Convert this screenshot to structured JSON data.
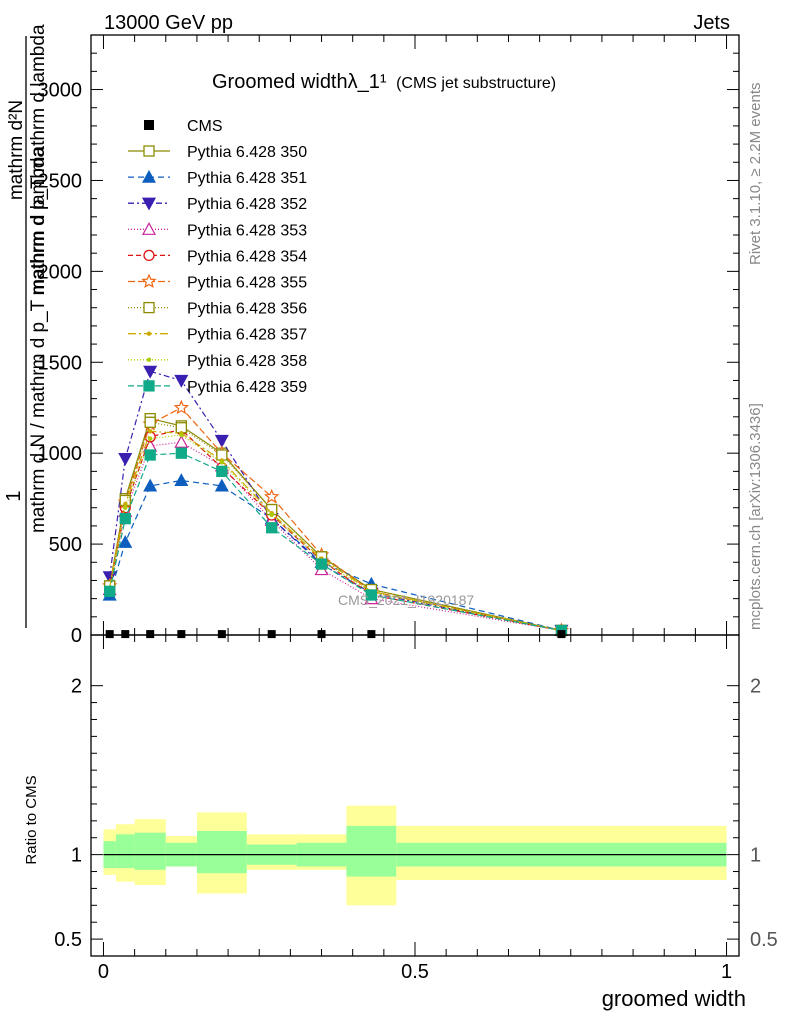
{
  "header": {
    "energy": "13000 GeV pp",
    "process": "Jets"
  },
  "side_labels": {
    "rivet": "Rivet 3.1.10, ≥ 2.2M events",
    "mcplots": "mcplots.cern.ch [arXiv:1306.3436]"
  },
  "chart_data": {
    "type": "line",
    "title": "Groomed widthλ_1¹",
    "title_suffix": "(CMS jet substructure)",
    "watermark": "CMS_2021_I1920187",
    "xlabel": "groomed width",
    "ylabel_top": "1",
    "ylabel_bottom": "mathrm d N / mathrm d p_T mathrm d lambda",
    "ylabel_right_line1": "mathrm d²N",
    "ylabel_right_line2": "mathrm d p_T mathrm d lambda",
    "ratio_ylabel": "Ratio to CMS",
    "xlim": [
      -0.02,
      1.02
    ],
    "ylim": [
      0,
      3300
    ],
    "ratio_ylim": [
      0.4,
      2.3
    ],
    "x_ticks": [
      0,
      0.5,
      1
    ],
    "x_tick_labels": [
      "0",
      "0.5",
      "1"
    ],
    "y_ticks": [
      0,
      500,
      1000,
      1500,
      2000,
      2500,
      3000
    ],
    "y_tick_labels": [
      "0",
      "500",
      "1000",
      "1500",
      "2000",
      "2500",
      "3000"
    ],
    "ratio_ticks": [
      0.5,
      1,
      2
    ],
    "ratio_tick_labels": [
      "0.5",
      "1",
      "2"
    ],
    "x": [
      0.01,
      0.035,
      0.075,
      0.125,
      0.19,
      0.27,
      0.35,
      0.43,
      0.735
    ],
    "cms": {
      "name": "CMS",
      "values": [
        5,
        5,
        5,
        5,
        5,
        5,
        5,
        5,
        5
      ],
      "color": "#000000"
    },
    "bins": [
      0,
      0.02,
      0.05,
      0.1,
      0.15,
      0.23,
      0.31,
      0.39,
      0.47,
      1.0
    ],
    "band_inner": [
      [
        0.92,
        1.08
      ],
      [
        0.92,
        1.12
      ],
      [
        0.91,
        1.13
      ],
      [
        0.93,
        1.07
      ],
      [
        0.89,
        1.14
      ],
      [
        0.94,
        1.06
      ],
      [
        0.93,
        1.07
      ],
      [
        0.87,
        1.17
      ],
      [
        0.93,
        1.07
      ]
    ],
    "band_outer": [
      [
        0.88,
        1.15
      ],
      [
        0.84,
        1.18
      ],
      [
        0.82,
        1.21
      ],
      [
        0.93,
        1.11
      ],
      [
        0.77,
        1.25
      ],
      [
        0.91,
        1.12
      ],
      [
        0.91,
        1.12
      ],
      [
        0.7,
        1.29
      ],
      [
        0.85,
        1.17
      ]
    ],
    "band_inner_color": "#99ff99",
    "band_outer_color": "#ffff99",
    "series": [
      {
        "name": "Pythia 6.428 350",
        "color": "#8b8b00",
        "dash": "",
        "marker": "square-open",
        "values": [
          270,
          750,
          1190,
          1150,
          1000,
          690,
          430,
          250,
          25
        ]
      },
      {
        "name": "Pythia 6.428 351",
        "color": "#0d5ebf",
        "dash": "6,4",
        "marker": "triangle-up-filled",
        "values": [
          220,
          510,
          820,
          850,
          820,
          640,
          400,
          280,
          25
        ]
      },
      {
        "name": "Pythia 6.428 352",
        "color": "#3b1fb0",
        "dash": "6,3,2,3",
        "marker": "triangle-down-filled",
        "values": [
          320,
          970,
          1450,
          1400,
          1070,
          640,
          390,
          230,
          25
        ]
      },
      {
        "name": "Pythia 6.428 353",
        "color": "#cc2299",
        "dash": "1,2",
        "marker": "triangle-up-open",
        "values": [
          250,
          680,
          1040,
          1060,
          930,
          630,
          360,
          200,
          25
        ]
      },
      {
        "name": "Pythia 6.428 354",
        "color": "#dd1111",
        "dash": "5,3",
        "marker": "circle-open",
        "values": [
          260,
          700,
          1090,
          1130,
          920,
          660,
          410,
          220,
          25
        ]
      },
      {
        "name": "Pythia 6.428 355",
        "color": "#ee6611",
        "dash": "7,3",
        "marker": "star-open",
        "values": [
          270,
          730,
          1160,
          1250,
          1000,
          760,
          440,
          240,
          25
        ]
      },
      {
        "name": "Pythia 6.428 356",
        "color": "#8b8b00",
        "dash": "1,2",
        "marker": "square-open",
        "values": [
          270,
          740,
          1170,
          1140,
          990,
          690,
          430,
          250,
          25
        ]
      },
      {
        "name": "Pythia 6.428 357",
        "color": "#ccaa00",
        "dash": "8,3,2,3",
        "marker": "dot",
        "values": [
          260,
          720,
          1120,
          1110,
          960,
          670,
          420,
          240,
          25
        ]
      },
      {
        "name": "Pythia 6.428 358",
        "color": "#aacc00",
        "dash": "1,2",
        "marker": "dot",
        "values": [
          255,
          700,
          1080,
          1100,
          950,
          660,
          410,
          235,
          25
        ]
      },
      {
        "name": "Pythia 6.428 359",
        "color": "#11aa88",
        "dash": "6,3",
        "marker": "square-filled",
        "values": [
          240,
          640,
          990,
          1000,
          900,
          590,
          390,
          220,
          25
        ]
      }
    ]
  }
}
